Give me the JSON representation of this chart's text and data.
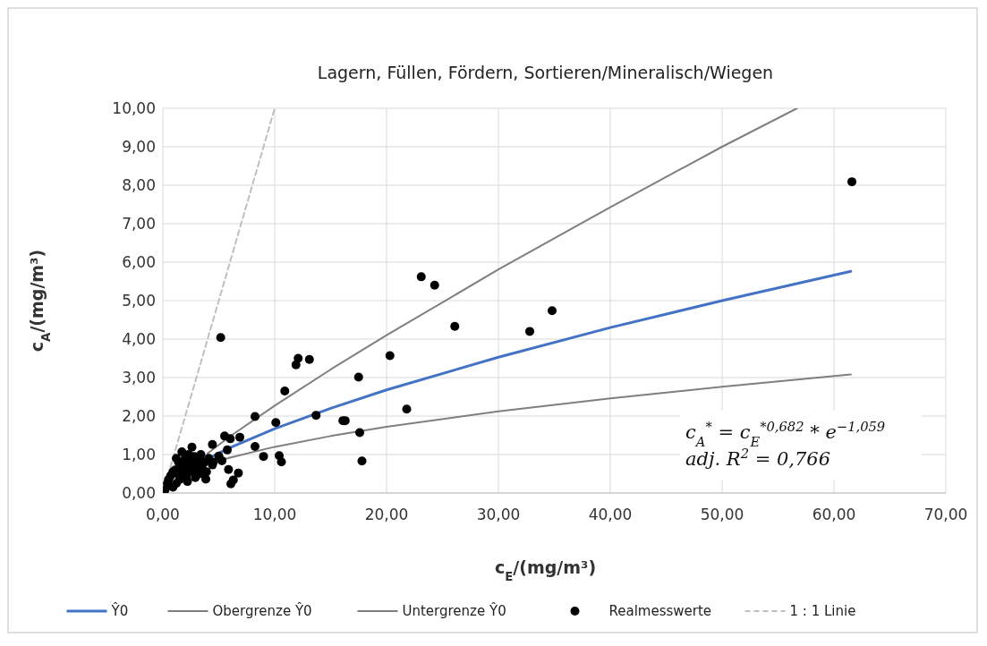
{
  "chart_data": {
    "type": "scatter",
    "title": "Lagern, Füllen, Fördern, Sortieren/Mineralisch/Wiegen",
    "xlabel": "c$_{E}$/(mg/m³)",
    "ylabel": "c$_{A}$/(mg/m³)",
    "xlim": [
      0,
      70
    ],
    "ylim": [
      0,
      10
    ],
    "xticks": [
      {
        "value": 0,
        "label": "0,00"
      },
      {
        "value": 10,
        "label": "10,00"
      },
      {
        "value": 20,
        "label": "20,00"
      },
      {
        "value": 30,
        "label": "30,00"
      },
      {
        "value": 40,
        "label": "40,00"
      },
      {
        "value": 50,
        "label": "50,00"
      },
      {
        "value": 60,
        "label": "60,00"
      },
      {
        "value": 70,
        "label": "70,00"
      }
    ],
    "yticks": [
      {
        "value": 0,
        "label": "0,00"
      },
      {
        "value": 1,
        "label": "1,00"
      },
      {
        "value": 2,
        "label": "2,00"
      },
      {
        "value": 3,
        "label": "3,00"
      },
      {
        "value": 4,
        "label": "4,00"
      },
      {
        "value": 5,
        "label": "5,00"
      },
      {
        "value": 6,
        "label": "6,00"
      },
      {
        "value": 7,
        "label": "7,00"
      },
      {
        "value": 8,
        "label": "8,00"
      },
      {
        "value": 9,
        "label": "9,00"
      },
      {
        "value": 10,
        "label": "10,00"
      }
    ],
    "grid": true,
    "legend": "bottom",
    "annotations": [
      "c$_{A}$$^{*}$ = c$_{E}$$^{*0,682}$ * e$^{−1,059}$",
      "adj. R$^{2}$ = 0,766"
    ],
    "series": [
      {
        "name": "Ŷ0",
        "type": "line",
        "color": "#4472c4",
        "x": [
          4,
          6,
          10,
          15,
          20,
          30,
          40,
          50,
          61.5
        ],
        "values": [
          0.89,
          1.18,
          1.67,
          2.2,
          2.68,
          3.53,
          4.3,
          5.0,
          5.76
        ]
      },
      {
        "name": "Obergrenze Ŷ0",
        "type": "line",
        "color": "#7f7f7f",
        "x": [
          4,
          6,
          10,
          15,
          20,
          30,
          40,
          50,
          56.7
        ],
        "values": [
          1.03,
          1.47,
          2.27,
          3.21,
          4.1,
          5.81,
          7.43,
          9.0,
          10.0
        ]
      },
      {
        "name": "Untergrenze Ŷ0",
        "type": "line",
        "color": "#7f7f7f",
        "x": [
          4,
          6,
          10,
          15,
          20,
          30,
          40,
          50,
          61.5
        ],
        "values": [
          0.74,
          0.92,
          1.2,
          1.48,
          1.72,
          2.12,
          2.46,
          2.76,
          3.08
        ]
      },
      {
        "name": "Realmesswerte",
        "color": "#000000",
        "marker": "circle",
        "x": [
          5.17,
          12.1,
          11.9,
          13.1,
          20.3,
          17.5,
          10.9,
          8.24,
          10.1,
          13.7,
          16.1,
          16.3,
          21.8,
          17.6,
          17.8,
          5.52,
          6.03,
          6.88,
          4.43,
          5.76,
          8.24,
          9.0,
          10.4,
          10.6,
          5.87,
          6.75,
          6.08,
          6.3,
          3.84,
          5.0,
          5.28,
          4.43,
          23.1,
          24.3,
          26.1,
          32.8,
          34.8,
          61.6,
          0.2,
          0.4,
          0.5,
          0.7,
          0.9,
          1.1,
          1.2,
          1.3,
          1.4,
          1.5,
          1.6,
          1.7,
          1.8,
          1.9,
          2.0,
          2.1,
          2.2,
          2.3,
          2.4,
          2.5,
          2.6,
          2.7,
          2.8,
          2.9,
          3.0,
          3.1,
          3.2,
          3.3,
          3.4,
          3.5,
          3.7,
          3.9,
          4.1,
          2.2,
          1.2,
          0.9,
          4.5
        ],
        "values": [
          4.04,
          3.5,
          3.33,
          3.47,
          3.57,
          3.01,
          2.65,
          1.99,
          1.83,
          2.02,
          1.88,
          1.88,
          2.18,
          1.57,
          0.83,
          1.48,
          1.41,
          1.45,
          1.26,
          1.12,
          1.21,
          0.95,
          0.97,
          0.81,
          0.61,
          0.52,
          0.24,
          0.34,
          0.36,
          0.96,
          0.84,
          0.73,
          5.62,
          5.4,
          4.33,
          4.2,
          4.74,
          8.09,
          0.08,
          0.25,
          0.35,
          0.45,
          0.55,
          0.6,
          0.25,
          0.5,
          0.8,
          0.35,
          0.65,
          1.07,
          0.5,
          0.75,
          0.9,
          0.45,
          0.6,
          1.0,
          0.7,
          0.85,
          1.19,
          0.55,
          0.95,
          0.4,
          0.75,
          0.62,
          0.88,
          0.5,
          1.0,
          0.7,
          0.8,
          0.55,
          0.9,
          0.3,
          0.9,
          0.15,
          0.8
        ]
      },
      {
        "name": "1 : 1 Linie",
        "type": "line",
        "color": "#bfbfbf",
        "line_style": "dashed",
        "x": [
          0,
          10
        ],
        "values": [
          0,
          10
        ]
      }
    ]
  }
}
